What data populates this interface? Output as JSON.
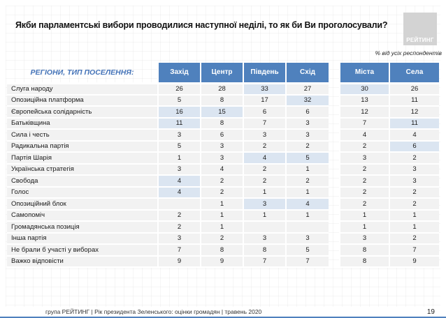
{
  "slide": {
    "title": "Якби парламентські вибори проводилися наступної неділі, то як би Ви проголосували?",
    "note": "% від усіх респондентів",
    "logo_text": "РЕЙТИНГ",
    "footer": "група РЕЙТИНГ |  Рік президента Зеленського: оцінки громадян | травень 2020",
    "page_number": "19"
  },
  "colors": {
    "header_blue": "#4f81bd",
    "highlight_blue": "#dbe5f1",
    "row_gray": "#f2f2f2",
    "corner_label_blue": "#4473b8",
    "logo_gray": "#d3d3d3"
  },
  "chart_data": {
    "type": "table",
    "title": "Якби парламентські вибори проводилися наступної неділі, то як би Ви проголосували?",
    "unit": "% від усіх респондентів",
    "corner_label": "РЕГІОНИ, ТИП ПОСЕЛЕННЯ:",
    "columns": [
      "Захід",
      "Центр",
      "Південь",
      "Схід",
      "Міста",
      "Села"
    ],
    "column_groups": [
      "регіони",
      "регіони",
      "регіони",
      "регіони",
      "тип поселення",
      "тип поселення"
    ],
    "rows": [
      {
        "label": "Слуга народу",
        "values": [
          "26",
          "28",
          "33",
          "27",
          "30",
          "26"
        ],
        "highlight": [
          2,
          4
        ]
      },
      {
        "label": "Опозиційна платформа",
        "values": [
          "5",
          "8",
          "17",
          "32",
          "13",
          "11"
        ],
        "highlight": [
          3
        ]
      },
      {
        "label": "Європейська солідарність",
        "values": [
          "16",
          "15",
          "6",
          "6",
          "12",
          "12"
        ],
        "highlight": [
          0,
          1
        ]
      },
      {
        "label": "Батьківщина",
        "values": [
          "11",
          "8",
          "7",
          "3",
          "7",
          "11"
        ],
        "highlight": [
          0,
          5
        ]
      },
      {
        "label": "Сила і честь",
        "values": [
          "3",
          "6",
          "3",
          "3",
          "4",
          "4"
        ],
        "highlight": []
      },
      {
        "label": "Радикальна партія",
        "values": [
          "5",
          "3",
          "2",
          "2",
          "2",
          "6"
        ],
        "highlight": [
          5
        ]
      },
      {
        "label": "Партія Шарія",
        "values": [
          "1",
          "3",
          "4",
          "5",
          "3",
          "2"
        ],
        "highlight": [
          2,
          3
        ]
      },
      {
        "label": "Українська стратегія",
        "values": [
          "3",
          "4",
          "2",
          "1",
          "2",
          "3"
        ],
        "highlight": []
      },
      {
        "label": "Свобода",
        "values": [
          "4",
          "2",
          "2",
          "2",
          "2",
          "3"
        ],
        "highlight": [
          0
        ]
      },
      {
        "label": "Голос",
        "values": [
          "4",
          "2",
          "1",
          "1",
          "2",
          "2"
        ],
        "highlight": [
          0
        ]
      },
      {
        "label": "Опозиційний блок",
        "values": [
          "",
          "1",
          "3",
          "4",
          "2",
          "2"
        ],
        "highlight": [
          2,
          3
        ]
      },
      {
        "label": "Самопоміч",
        "values": [
          "2",
          "1",
          "1",
          "1",
          "1",
          "1"
        ],
        "highlight": []
      },
      {
        "label": "Громадянська позиція",
        "values": [
          "2",
          "1",
          "",
          "",
          "1",
          "1"
        ],
        "highlight": []
      },
      {
        "label": "Інша партія",
        "values": [
          "3",
          "2",
          "3",
          "3",
          "3",
          "2"
        ],
        "highlight": []
      },
      {
        "label": "Не брали б участі у виборах",
        "values": [
          "7",
          "8",
          "8",
          "5",
          "8",
          "7"
        ],
        "highlight": []
      },
      {
        "label": "Важко відповісти",
        "values": [
          "9",
          "9",
          "7",
          "7",
          "8",
          "9"
        ],
        "highlight": []
      }
    ]
  }
}
